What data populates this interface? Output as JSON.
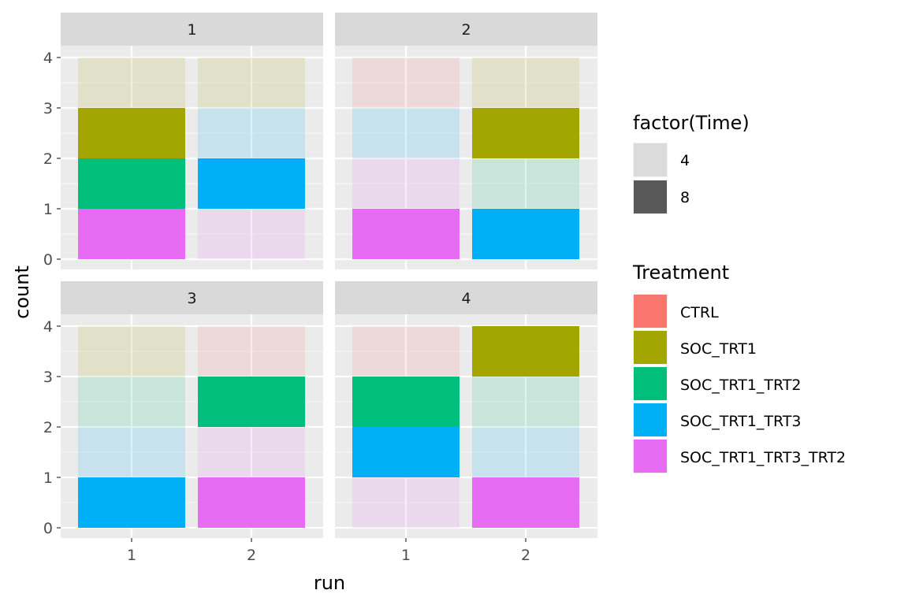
{
  "colors": {
    "CTRL": "#F8766D",
    "SOC_TRT1": "#A3A500",
    "SOC_TRT1_TRT2": "#00BF7D",
    "SOC_TRT1_TRT3": "#00B0F6",
    "SOC_TRT1_TRT3_TRT2": "#E76BF3"
  },
  "chart_data": {
    "type": "bar",
    "stacked": true,
    "faceted": true,
    "xlabel": "run",
    "ylabel": "count",
    "ylim": [
      0,
      4
    ],
    "y_ticks": [
      "0",
      "1",
      "2",
      "3",
      "4"
    ],
    "x_ticks": [
      "1",
      "2"
    ],
    "grid": true,
    "legend_position": "right",
    "legends": [
      {
        "title": "factor(Time)",
        "type": "alpha",
        "entries": [
          {
            "label": "4",
            "alpha": 0.15
          },
          {
            "label": "8",
            "alpha": 1
          }
        ]
      },
      {
        "title": "Treatment",
        "type": "fill",
        "entries": [
          "CTRL",
          "SOC_TRT1",
          "SOC_TRT1_TRT2",
          "SOC_TRT1_TRT3",
          "SOC_TRT1_TRT3_TRT2"
        ]
      }
    ],
    "facets": [
      {
        "label": "1",
        "runs": [
          {
            "run": "1",
            "segments": [
              {
                "treatment": "SOC_TRT1_TRT3_TRT2",
                "time": "8",
                "count": 1
              },
              {
                "treatment": "SOC_TRT1_TRT2",
                "time": "8",
                "count": 1
              },
              {
                "treatment": "SOC_TRT1",
                "time": "8",
                "count": 1
              },
              {
                "treatment": "SOC_TRT1",
                "time": "4",
                "count": 1
              }
            ]
          },
          {
            "run": "2",
            "segments": [
              {
                "treatment": "SOC_TRT1_TRT3_TRT2",
                "time": "4",
                "count": 1
              },
              {
                "treatment": "SOC_TRT1_TRT3",
                "time": "8",
                "count": 1
              },
              {
                "treatment": "SOC_TRT1_TRT3",
                "time": "4",
                "count": 1
              },
              {
                "treatment": "SOC_TRT1",
                "time": "4",
                "count": 1
              }
            ]
          }
        ]
      },
      {
        "label": "2",
        "runs": [
          {
            "run": "1",
            "segments": [
              {
                "treatment": "SOC_TRT1_TRT3_TRT2",
                "time": "8",
                "count": 1
              },
              {
                "treatment": "SOC_TRT1_TRT3_TRT2",
                "time": "4",
                "count": 1
              },
              {
                "treatment": "SOC_TRT1_TRT3",
                "time": "4",
                "count": 1
              },
              {
                "treatment": "CTRL",
                "time": "4",
                "count": 1
              }
            ]
          },
          {
            "run": "2",
            "segments": [
              {
                "treatment": "SOC_TRT1_TRT3",
                "time": "8",
                "count": 1
              },
              {
                "treatment": "SOC_TRT1_TRT2",
                "time": "4",
                "count": 1
              },
              {
                "treatment": "SOC_TRT1",
                "time": "8",
                "count": 1
              },
              {
                "treatment": "SOC_TRT1",
                "time": "4",
                "count": 1
              }
            ]
          }
        ]
      },
      {
        "label": "3",
        "runs": [
          {
            "run": "1",
            "segments": [
              {
                "treatment": "SOC_TRT1_TRT3",
                "time": "8",
                "count": 1
              },
              {
                "treatment": "SOC_TRT1_TRT3",
                "time": "4",
                "count": 1
              },
              {
                "treatment": "SOC_TRT1_TRT2",
                "time": "4",
                "count": 1
              },
              {
                "treatment": "SOC_TRT1",
                "time": "4",
                "count": 1
              }
            ]
          },
          {
            "run": "2",
            "segments": [
              {
                "treatment": "SOC_TRT1_TRT3_TRT2",
                "time": "8",
                "count": 1
              },
              {
                "treatment": "SOC_TRT1_TRT3_TRT2",
                "time": "4",
                "count": 1
              },
              {
                "treatment": "SOC_TRT1_TRT2",
                "time": "8",
                "count": 1
              },
              {
                "treatment": "CTRL",
                "time": "4",
                "count": 1
              }
            ]
          }
        ]
      },
      {
        "label": "4",
        "runs": [
          {
            "run": "1",
            "segments": [
              {
                "treatment": "SOC_TRT1_TRT3_TRT2",
                "time": "4",
                "count": 1
              },
              {
                "treatment": "SOC_TRT1_TRT3",
                "time": "8",
                "count": 1
              },
              {
                "treatment": "SOC_TRT1_TRT2",
                "time": "8",
                "count": 1
              },
              {
                "treatment": "CTRL",
                "time": "4",
                "count": 1
              }
            ]
          },
          {
            "run": "2",
            "segments": [
              {
                "treatment": "SOC_TRT1_TRT3_TRT2",
                "time": "8",
                "count": 1
              },
              {
                "treatment": "SOC_TRT1_TRT3",
                "time": "4",
                "count": 1
              },
              {
                "treatment": "SOC_TRT1_TRT2",
                "time": "4",
                "count": 1
              },
              {
                "treatment": "SOC_TRT1",
                "time": "8",
                "count": 1
              }
            ]
          }
        ]
      }
    ]
  }
}
